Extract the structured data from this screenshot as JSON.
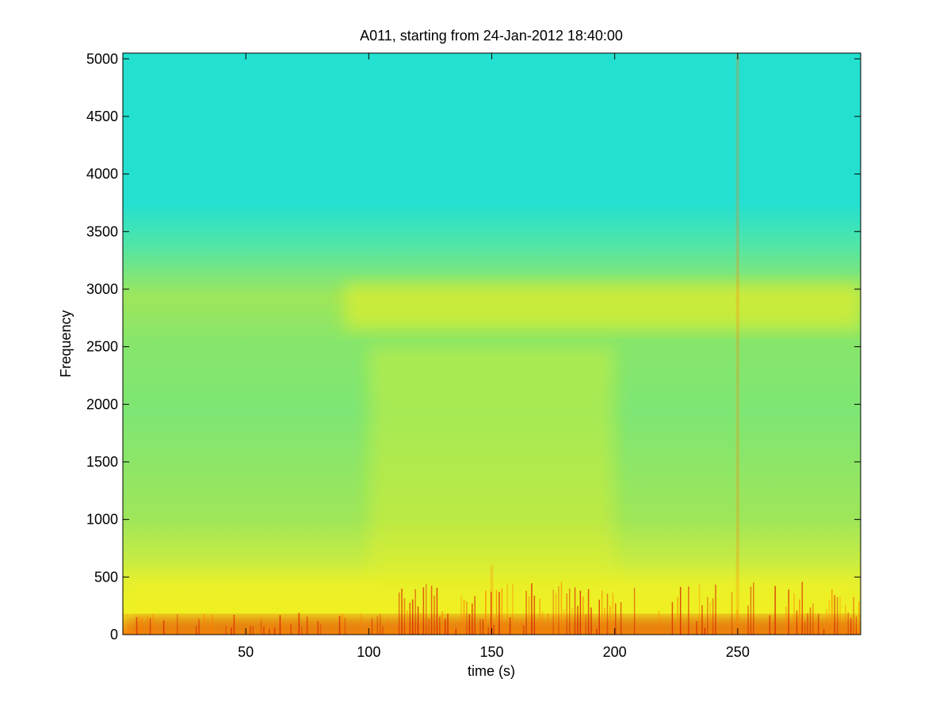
{
  "chart_data": {
    "type": "heatmap",
    "title": "A011, starting from 24-Jan-2012 18:40:00",
    "xlabel": "time (s)",
    "ylabel": "Frequency",
    "xlim": [
      0,
      300
    ],
    "ylim": [
      0,
      5050
    ],
    "xticks": [
      50,
      100,
      150,
      200,
      250
    ],
    "xtick_labels": [
      "50",
      "100",
      "150",
      "200",
      "250"
    ],
    "yticks": [
      0,
      500,
      1000,
      1500,
      2000,
      2500,
      3000,
      3500,
      4000,
      4500,
      5000
    ],
    "ytick_labels": [
      "0",
      "500",
      "1000",
      "1500",
      "2000",
      "2500",
      "3000",
      "3500",
      "4000",
      "4500",
      "5000"
    ],
    "colormap": "jet",
    "colors": {
      "high_frequency_background": "#24e0d0",
      "mid_band": "#9ee65a",
      "bright_band": "#f0f020",
      "low_frequency_energy": "#ff8000",
      "peak_energy": "#d82000"
    },
    "grid": false,
    "legend": "none",
    "features": [
      {
        "name": "low-frequency energy band",
        "freq_range": [
          0,
          500
        ],
        "time_range": [
          0,
          300
        ]
      },
      {
        "name": "strongest bursts",
        "freq_range": [
          0,
          150
        ],
        "time_range": [
          0,
          300
        ]
      },
      {
        "name": "bright mid-frequency band",
        "freq_range": [
          2650,
          3050
        ],
        "time_range": [
          90,
          300
        ]
      },
      {
        "name": "broadband activity",
        "freq_range": [
          500,
          2500
        ],
        "time_range": [
          100,
          200
        ]
      },
      {
        "name": "vertical impulse",
        "time": 250,
        "freq_range": [
          0,
          5050
        ]
      },
      {
        "name": "vertical impulse",
        "time": 150,
        "freq_range": [
          0,
          600
        ]
      }
    ]
  }
}
